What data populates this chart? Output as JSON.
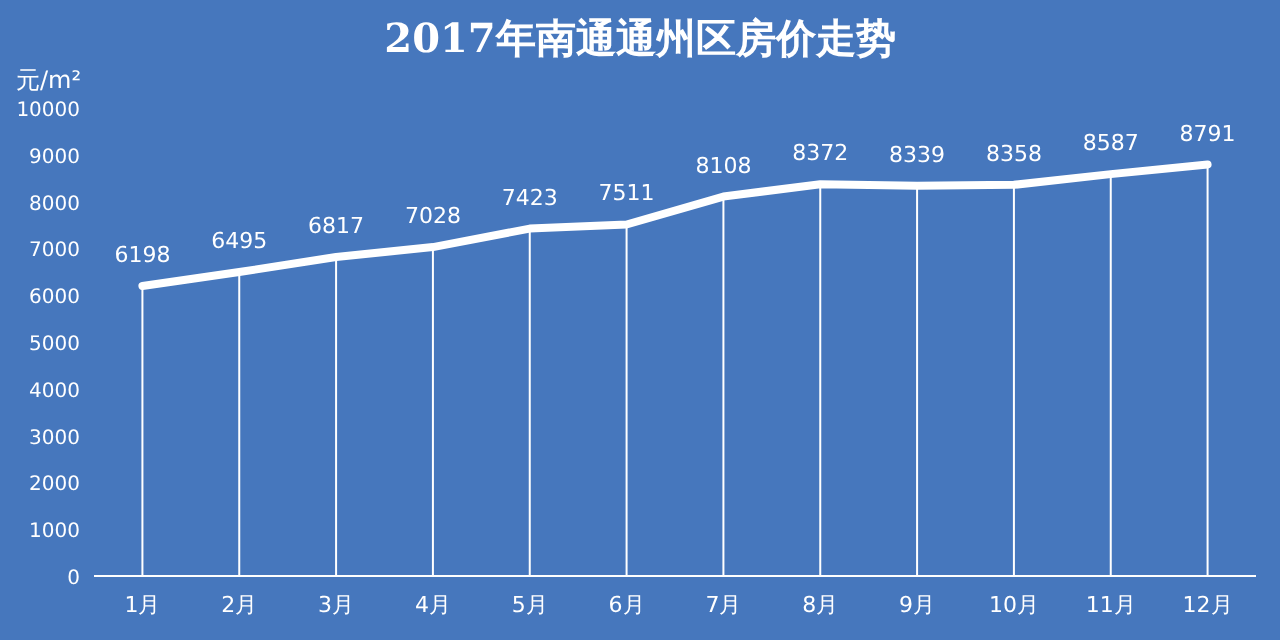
{
  "chart_data": {
    "type": "line",
    "title": "2017年南通通州区房价走势",
    "ylabel": "元/m²",
    "categories": [
      "1月",
      "2月",
      "3月",
      "4月",
      "5月",
      "6月",
      "7月",
      "8月",
      "9月",
      "10月",
      "11月",
      "12月"
    ],
    "series": [
      {
        "color": "#ffffff",
        "values": [
          6198,
          6495,
          6817,
          7028,
          7423,
          7511,
          8108,
          8372,
          8339,
          8358,
          8587,
          8791
        ]
      }
    ],
    "ylim": [
      0,
      10000
    ],
    "yticks": [
      0,
      1000,
      2000,
      3000,
      4000,
      5000,
      6000,
      7000,
      8000,
      9000,
      10000
    ],
    "data_labels": true,
    "grid": "x",
    "marker": "none",
    "line_style": "solid"
  }
}
